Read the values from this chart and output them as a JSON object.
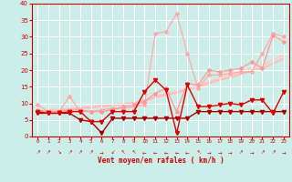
{
  "xlabel": "Vent moyen/en rafales ( km/h )",
  "x_labels": [
    "0",
    "1",
    "2",
    "3",
    "4",
    "5",
    "6",
    "7",
    "8",
    "9",
    "10",
    "11",
    "12",
    "13",
    "14",
    "15",
    "16",
    "17",
    "18",
    "19",
    "20",
    "21",
    "22",
    "23"
  ],
  "ylim": [
    0,
    40
  ],
  "yticks": [
    0,
    5,
    10,
    15,
    20,
    25,
    30,
    35,
    40
  ],
  "background_color": "#cceee8",
  "grid_color": "#ffffff",
  "xlabel_color": "#cc0000",
  "tick_color": "#cc0000",
  "series": [
    {
      "comment": "light pink - highest rafales line (dotted-ish, goes to 37)",
      "y": [
        9.5,
        7.5,
        7.5,
        12.0,
        7.5,
        7.5,
        8.0,
        8.5,
        8.5,
        9.0,
        9.5,
        31.0,
        31.5,
        37.0,
        25.0,
        14.5,
        18.5,
        18.5,
        19.0,
        19.5,
        19.5,
        25.0,
        31.0,
        30.0
      ],
      "color": "#ffaaaa",
      "lw": 0.9,
      "marker": "D",
      "ms": 2.0,
      "zorder": 2
    },
    {
      "comment": "medium pink - second rafales",
      "y": [
        8.0,
        7.5,
        7.5,
        8.0,
        8.0,
        7.5,
        7.5,
        8.0,
        9.0,
        9.5,
        10.5,
        13.0,
        14.5,
        7.5,
        16.0,
        15.5,
        20.0,
        19.5,
        20.0,
        20.5,
        22.5,
        20.5,
        30.5,
        28.5
      ],
      "color": "#ff9999",
      "lw": 0.9,
      "marker": "D",
      "ms": 2.0,
      "zorder": 3
    },
    {
      "comment": "linear trend line 1 - light pink no marker",
      "y": [
        7.5,
        7.8,
        8.1,
        8.4,
        8.7,
        9.0,
        9.3,
        9.6,
        9.9,
        10.2,
        11.0,
        12.0,
        13.0,
        13.5,
        14.5,
        15.5,
        16.5,
        17.5,
        18.5,
        19.5,
        20.5,
        21.5,
        23.0,
        24.5
      ],
      "color": "#ffcccc",
      "lw": 1.5,
      "marker": null,
      "ms": 0,
      "zorder": 1
    },
    {
      "comment": "linear trend line 2 - slightly darker pink no marker",
      "y": [
        7.5,
        7.7,
        7.9,
        8.2,
        8.5,
        8.7,
        9.0,
        9.3,
        9.7,
        10.1,
        10.8,
        11.8,
        12.5,
        13.2,
        14.2,
        15.0,
        16.0,
        17.0,
        17.8,
        18.8,
        19.8,
        20.5,
        22.0,
        23.5
      ],
      "color": "#ffbbbb",
      "lw": 1.5,
      "marker": null,
      "ms": 0,
      "zorder": 1
    },
    {
      "comment": "dark red - moyen with big dip at 5-6, triangle markers",
      "y": [
        7.5,
        7.0,
        7.0,
        7.5,
        7.5,
        4.5,
        4.5,
        7.5,
        7.5,
        7.5,
        13.5,
        17.0,
        14.0,
        1.0,
        15.5,
        9.0,
        9.0,
        9.5,
        10.0,
        9.5,
        11.0,
        11.0,
        7.0,
        13.5
      ],
      "color": "#dd0000",
      "lw": 1.0,
      "marker": "v",
      "ms": 3.0,
      "zorder": 5
    },
    {
      "comment": "dark red flat line - lower moyen",
      "y": [
        7.0,
        7.0,
        7.0,
        7.0,
        5.0,
        4.5,
        1.0,
        5.5,
        5.5,
        5.5,
        5.5,
        5.5,
        5.5,
        5.5,
        5.5,
        7.5,
        7.5,
        7.5,
        7.5,
        7.5,
        7.5,
        7.5,
        7.5,
        7.5
      ],
      "color": "#aa0000",
      "lw": 1.0,
      "marker": "v",
      "ms": 3.0,
      "zorder": 4
    }
  ],
  "wind_arrows": [
    "↗",
    "↗",
    "↘",
    "↗",
    "↗",
    "↗",
    "→",
    "↙",
    "↖",
    "↖",
    "←",
    "←",
    "←",
    "←",
    "←",
    "↖",
    "→",
    "→",
    "→",
    "↗",
    "→",
    "↗",
    "↗",
    "→"
  ]
}
